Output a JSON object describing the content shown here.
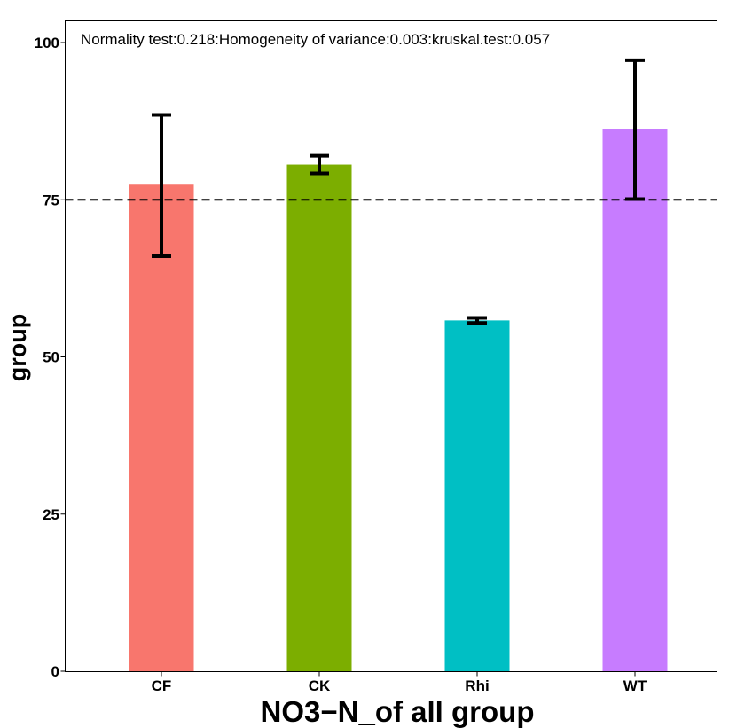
{
  "chart_data": {
    "type": "bar",
    "title": "",
    "annotation": "Normality test:0.218:Homogeneity of variance:0.003:kruskal.test:0.057",
    "xlabel": "NO3−N_of all group",
    "ylabel": "group",
    "categories": [
      "CF",
      "CK",
      "Rhi",
      "WT"
    ],
    "values": [
      77.4,
      80.6,
      55.8,
      86.3
    ],
    "error_low": [
      66.0,
      79.2,
      55.4,
      75.1
    ],
    "error_high": [
      88.5,
      82.0,
      56.2,
      97.2
    ],
    "colors": [
      "#F8766D",
      "#7CAE00",
      "#00BFC4",
      "#C77CFF"
    ],
    "reference_line": 75,
    "ylim": [
      0,
      100
    ],
    "yticks": [
      0,
      25,
      50,
      75,
      100
    ],
    "grid": false,
    "legend": "none"
  }
}
